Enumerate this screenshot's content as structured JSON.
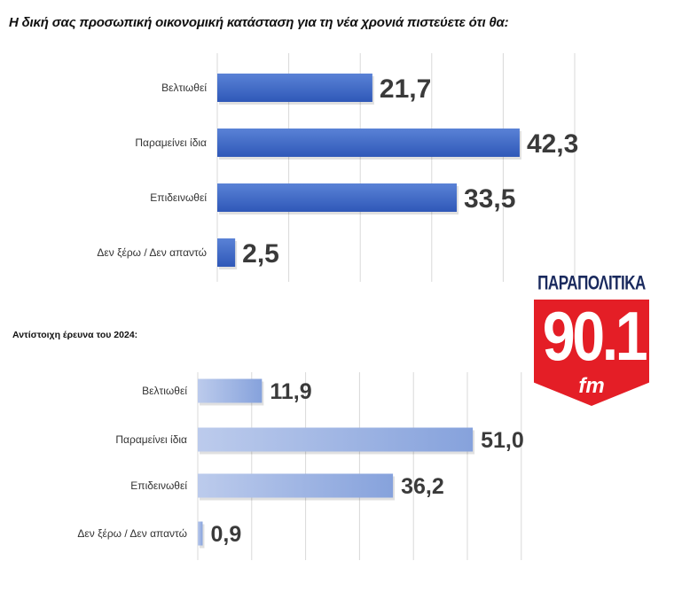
{
  "chart_data": [
    {
      "type": "bar",
      "orientation": "horizontal",
      "title": "Η δική σας προσωπική οικονομική κατάσταση για τη νέα χρονιά πιστεύετε ότι θα:",
      "categories": [
        "Βελτιωθεί",
        "Παραμείνει ίδια",
        "Επιδεινωθεί",
        "Δεν ξέρω / Δεν απαντώ"
      ],
      "values": [
        21.7,
        42.3,
        33.5,
        2.5
      ],
      "value_labels": [
        "21,7",
        "42,3",
        "33,5",
        "2,5"
      ],
      "xlim": [
        0,
        50
      ],
      "grid": true,
      "color": "#3d66c4"
    },
    {
      "type": "bar",
      "orientation": "horizontal",
      "title": "Αντίστοιχη έρευνα του 2024:",
      "categories": [
        "Βελτιωθεί",
        "Παραμείνει ίδια",
        "Επιδεινωθεί",
        "Δεν ξέρω / Δεν απαντώ"
      ],
      "values": [
        11.9,
        51.0,
        36.2,
        0.9
      ],
      "value_labels": [
        "11,9",
        "51,0",
        "36,2",
        "0,9"
      ],
      "xlim": [
        0,
        60
      ],
      "grid": true,
      "color": "#9fb6e4"
    }
  ],
  "logo": {
    "brand": "ΠΑΡΑΠΟΛΙΤΙΚΑ",
    "frequency": "90.1",
    "band": "fm"
  }
}
